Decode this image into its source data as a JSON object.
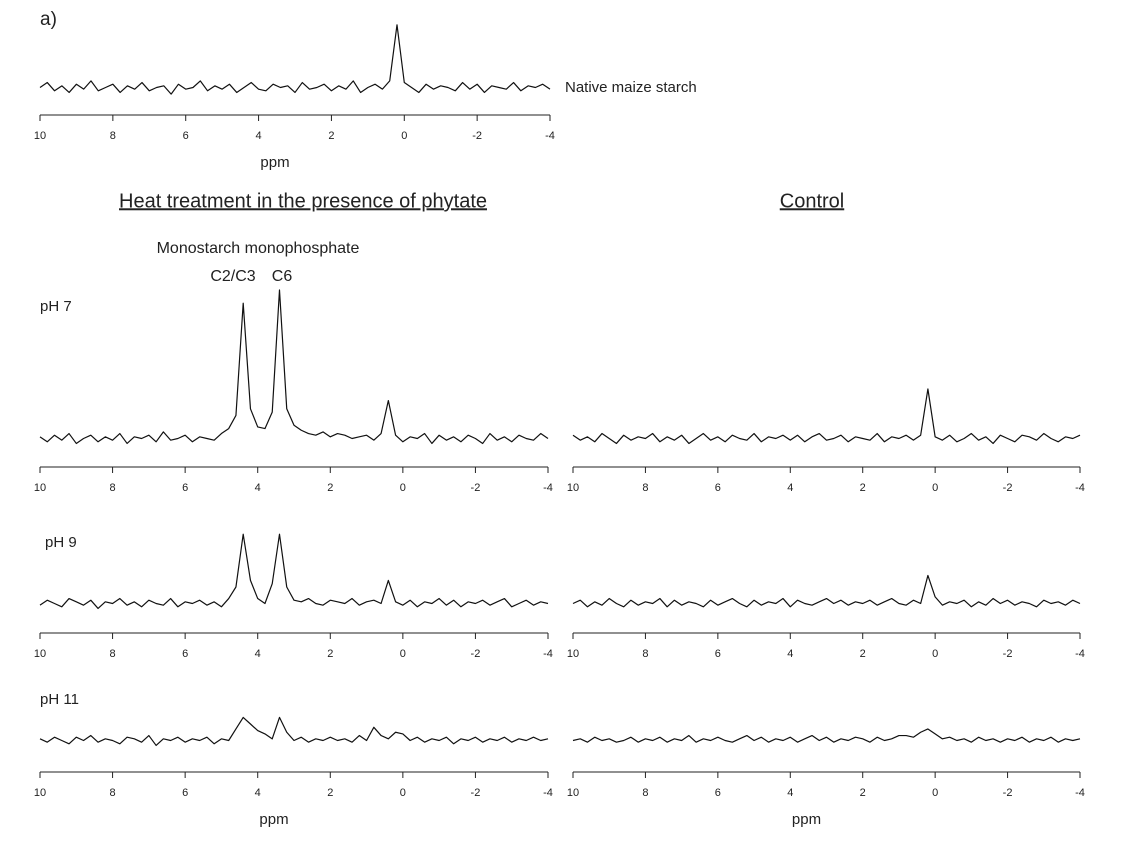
{
  "panel_label": "a)",
  "column_titles": [
    "Heat treatment in the presence of phytate",
    "Control"
  ],
  "annotations": [
    "Monostarch monophosphate",
    "C2/C3",
    "C6"
  ],
  "chart_data": [
    {
      "type": "line",
      "label": "Native maize starch",
      "xlabel": "ppm",
      "color": "#111111",
      "xlim": [
        10,
        -4
      ],
      "xticks": [
        10,
        8,
        6,
        4,
        2,
        0,
        -2,
        -4
      ],
      "x": [
        10,
        9.8,
        9.6,
        9.4,
        9.2,
        9,
        8.8,
        8.6,
        8.4,
        8.2,
        8,
        7.8,
        7.6,
        7.4,
        7.2,
        7,
        6.8,
        6.6,
        6.4,
        6.2,
        6,
        5.8,
        5.6,
        5.4,
        5.2,
        5,
        4.8,
        4.6,
        4.4,
        4.2,
        4,
        3.8,
        3.6,
        3.4,
        3.2,
        3,
        2.8,
        2.6,
        2.4,
        2.2,
        2,
        1.8,
        1.6,
        1.4,
        1.2,
        1,
        0.8,
        0.6,
        0.4,
        0.2,
        0,
        -0.2,
        -0.4,
        -0.6,
        -0.8,
        -1,
        -1.2,
        -1.4,
        -1.6,
        -1.8,
        -2,
        -2.2,
        -2.4,
        -2.6,
        -2.8,
        -3,
        -3.2,
        -3.4,
        -3.6,
        -3.8,
        -4
      ],
      "values": [
        10,
        13,
        8,
        11,
        7,
        12,
        9,
        14,
        8,
        10,
        12,
        7,
        11,
        9,
        13,
        8,
        10,
        11,
        6,
        12,
        9,
        10,
        14,
        8,
        11,
        9,
        12,
        7,
        10,
        13,
        9,
        8,
        12,
        10,
        11,
        7,
        13,
        9,
        10,
        12,
        8,
        11,
        9,
        14,
        7,
        10,
        12,
        9,
        14,
        48,
        13,
        10,
        7,
        12,
        9,
        11,
        10,
        8,
        13,
        9,
        12,
        7,
        11,
        10,
        9,
        13,
        8,
        11,
        10,
        12,
        9
      ],
      "ylim": [
        0,
        100
      ]
    },
    {
      "type": "line",
      "label": "pH 7",
      "color": "#111111",
      "xlim": [
        10,
        -4
      ],
      "xticks": [
        10,
        8,
        6,
        4,
        2,
        0,
        -2,
        -4
      ],
      "x": [
        10,
        9.8,
        9.6,
        9.4,
        9.2,
        9,
        8.8,
        8.6,
        8.4,
        8.2,
        8,
        7.8,
        7.6,
        7.4,
        7.2,
        7,
        6.8,
        6.6,
        6.4,
        6.2,
        6,
        5.8,
        5.6,
        5.4,
        5.2,
        5,
        4.8,
        4.6,
        4.4,
        4.2,
        4,
        3.8,
        3.6,
        3.4,
        3.2,
        3,
        2.8,
        2.6,
        2.4,
        2.2,
        2,
        1.8,
        1.6,
        1.4,
        1.2,
        1,
        0.8,
        0.6,
        0.4,
        0.2,
        0,
        -0.2,
        -0.4,
        -0.6,
        -0.8,
        -1,
        -1.2,
        -1.4,
        -1.6,
        -1.8,
        -2,
        -2.2,
        -2.4,
        -2.6,
        -2.8,
        -3,
        -3.2,
        -3.4,
        -3.6,
        -3.8,
        -4
      ],
      "values": [
        11,
        8,
        12,
        9,
        13,
        7,
        10,
        12,
        8,
        11,
        9,
        13,
        7,
        11,
        10,
        12,
        8,
        14,
        9,
        10,
        12,
        8,
        11,
        10,
        9,
        13,
        16,
        24,
        92,
        28,
        17,
        16,
        26,
        100,
        28,
        18,
        15,
        13,
        12,
        14,
        11,
        13,
        12,
        10,
        11,
        12,
        9,
        13,
        33,
        12,
        8,
        11,
        10,
        13,
        7,
        12,
        9,
        11,
        8,
        12,
        10,
        7,
        13,
        9,
        11,
        8,
        12,
        10,
        9,
        13,
        10
      ],
      "ylim": [
        0,
        100
      ]
    },
    {
      "type": "line",
      "color": "#111111",
      "xlim": [
        10,
        -4
      ],
      "xticks": [
        10,
        8,
        6,
        4,
        2,
        0,
        -2,
        -4
      ],
      "x": [
        10,
        9.8,
        9.6,
        9.4,
        9.2,
        9,
        8.8,
        8.6,
        8.4,
        8.2,
        8,
        7.8,
        7.6,
        7.4,
        7.2,
        7,
        6.8,
        6.6,
        6.4,
        6.2,
        6,
        5.8,
        5.6,
        5.4,
        5.2,
        5,
        4.8,
        4.6,
        4.4,
        4.2,
        4,
        3.8,
        3.6,
        3.4,
        3.2,
        3,
        2.8,
        2.6,
        2.4,
        2.2,
        2,
        1.8,
        1.6,
        1.4,
        1.2,
        1,
        0.8,
        0.6,
        0.4,
        0.2,
        0,
        -0.2,
        -0.4,
        -0.6,
        -0.8,
        -1,
        -1.2,
        -1.4,
        -1.6,
        -1.8,
        -2,
        -2.2,
        -2.4,
        -2.6,
        -2.8,
        -3,
        -3.2,
        -3.4,
        -3.6,
        -3.8,
        -4
      ],
      "values": [
        12,
        9,
        11,
        8,
        13,
        10,
        7,
        12,
        9,
        11,
        10,
        13,
        8,
        11,
        9,
        12,
        7,
        10,
        13,
        9,
        11,
        8,
        12,
        10,
        9,
        13,
        8,
        11,
        10,
        12,
        9,
        12,
        8,
        11,
        13,
        9,
        10,
        12,
        8,
        11,
        10,
        9,
        13,
        8,
        11,
        10,
        12,
        9,
        12,
        40,
        11,
        9,
        12,
        8,
        10,
        13,
        9,
        11,
        7,
        12,
        10,
        8,
        12,
        11,
        9,
        13,
        10,
        8,
        11,
        10,
        12
      ],
      "ylim": [
        0,
        100
      ]
    },
    {
      "type": "line",
      "label": "pH 9",
      "color": "#111111",
      "xlim": [
        10,
        -4
      ],
      "xticks": [
        10,
        8,
        6,
        4,
        2,
        0,
        -2,
        -4
      ],
      "x": [
        10,
        9.8,
        9.6,
        9.4,
        9.2,
        9,
        8.8,
        8.6,
        8.4,
        8.2,
        8,
        7.8,
        7.6,
        7.4,
        7.2,
        7,
        6.8,
        6.6,
        6.4,
        6.2,
        6,
        5.8,
        5.6,
        5.4,
        5.2,
        5,
        4.8,
        4.6,
        4.4,
        4.2,
        4,
        3.8,
        3.6,
        3.4,
        3.2,
        3,
        2.8,
        2.6,
        2.4,
        2.2,
        2,
        1.8,
        1.6,
        1.4,
        1.2,
        1,
        0.8,
        0.6,
        0.4,
        0.2,
        0,
        -0.2,
        -0.4,
        -0.6,
        -0.8,
        -1,
        -1.2,
        -1.4,
        -1.6,
        -1.8,
        -2,
        -2.2,
        -2.4,
        -2.6,
        -2.8,
        -3,
        -3.2,
        -3.4,
        -3.6,
        -3.8,
        -4
      ],
      "values": [
        9,
        12,
        10,
        8,
        13,
        11,
        9,
        12,
        7,
        11,
        10,
        13,
        9,
        11,
        8,
        12,
        10,
        9,
        13,
        8,
        11,
        10,
        12,
        9,
        11,
        8,
        13,
        20,
        52,
        24,
        13,
        10,
        22,
        52,
        20,
        12,
        11,
        13,
        10,
        9,
        12,
        11,
        10,
        13,
        9,
        11,
        12,
        10,
        24,
        11,
        9,
        12,
        8,
        11,
        10,
        13,
        9,
        12,
        8,
        11,
        10,
        12,
        9,
        11,
        13,
        8,
        10,
        12,
        9,
        11,
        10
      ],
      "ylim": [
        0,
        100
      ]
    },
    {
      "type": "line",
      "color": "#111111",
      "xlim": [
        10,
        -4
      ],
      "xticks": [
        10,
        8,
        6,
        4,
        2,
        0,
        -2,
        -4
      ],
      "x": [
        10,
        9.8,
        9.6,
        9.4,
        9.2,
        9,
        8.8,
        8.6,
        8.4,
        8.2,
        8,
        7.8,
        7.6,
        7.4,
        7.2,
        7,
        6.8,
        6.6,
        6.4,
        6.2,
        6,
        5.8,
        5.6,
        5.4,
        5.2,
        5,
        4.8,
        4.6,
        4.4,
        4.2,
        4,
        3.8,
        3.6,
        3.4,
        3.2,
        3,
        2.8,
        2.6,
        2.4,
        2.2,
        2,
        1.8,
        1.6,
        1.4,
        1.2,
        1,
        0.8,
        0.6,
        0.4,
        0.2,
        0,
        -0.2,
        -0.4,
        -0.6,
        -0.8,
        -1,
        -1.2,
        -1.4,
        -1.6,
        -1.8,
        -2,
        -2.2,
        -2.4,
        -2.6,
        -2.8,
        -3,
        -3.2,
        -3.4,
        -3.6,
        -3.8,
        -4
      ],
      "values": [
        10,
        12,
        8,
        11,
        9,
        13,
        10,
        8,
        12,
        9,
        11,
        10,
        13,
        8,
        12,
        9,
        11,
        10,
        8,
        12,
        9,
        11,
        13,
        10,
        8,
        12,
        9,
        11,
        10,
        13,
        8,
        12,
        10,
        9,
        11,
        13,
        10,
        12,
        9,
        11,
        10,
        12,
        9,
        11,
        13,
        10,
        9,
        12,
        10,
        27,
        14,
        9,
        11,
        10,
        12,
        8,
        11,
        9,
        13,
        10,
        12,
        9,
        11,
        10,
        8,
        12,
        10,
        11,
        9,
        12,
        10
      ],
      "ylim": [
        0,
        100
      ]
    },
    {
      "type": "line",
      "label": "pH 11",
      "xlabel": "ppm",
      "color": "#111111",
      "xlim": [
        10,
        -4
      ],
      "xticks": [
        10,
        8,
        6,
        4,
        2,
        0,
        -2,
        -4
      ],
      "x": [
        10,
        9.8,
        9.6,
        9.4,
        9.2,
        9,
        8.8,
        8.6,
        8.4,
        8.2,
        8,
        7.8,
        7.6,
        7.4,
        7.2,
        7,
        6.8,
        6.6,
        6.4,
        6.2,
        6,
        5.8,
        5.6,
        5.4,
        5.2,
        5,
        4.8,
        4.6,
        4.4,
        4.2,
        4,
        3.8,
        3.6,
        3.4,
        3.2,
        3,
        2.8,
        2.6,
        2.4,
        2.2,
        2,
        1.8,
        1.6,
        1.4,
        1.2,
        1,
        0.8,
        0.6,
        0.4,
        0.2,
        0,
        -0.2,
        -0.4,
        -0.6,
        -0.8,
        -1,
        -1.2,
        -1.4,
        -1.6,
        -1.8,
        -2,
        -2.2,
        -2.4,
        -2.6,
        -2.8,
        -3,
        -3.2,
        -3.4,
        -3.6,
        -3.8,
        -4
      ],
      "values": [
        11,
        9,
        12,
        10,
        8,
        12,
        10,
        13,
        9,
        11,
        10,
        8,
        12,
        11,
        9,
        13,
        7,
        11,
        10,
        12,
        9,
        11,
        10,
        12,
        8,
        11,
        10,
        17,
        24,
        20,
        16,
        14,
        11,
        24,
        15,
        10,
        12,
        9,
        11,
        10,
        12,
        10,
        11,
        9,
        13,
        10,
        18,
        13,
        11,
        15,
        14,
        10,
        12,
        9,
        11,
        10,
        12,
        8,
        11,
        10,
        12,
        9,
        11,
        10,
        12,
        9,
        11,
        10,
        12,
        10,
        11
      ],
      "ylim": [
        0,
        100
      ]
    },
    {
      "type": "line",
      "xlabel": "ppm",
      "color": "#111111",
      "xlim": [
        10,
        -4
      ],
      "xticks": [
        10,
        8,
        6,
        4,
        2,
        0,
        -2,
        -4
      ],
      "x": [
        10,
        9.8,
        9.6,
        9.4,
        9.2,
        9,
        8.8,
        8.6,
        8.4,
        8.2,
        8,
        7.8,
        7.6,
        7.4,
        7.2,
        7,
        6.8,
        6.6,
        6.4,
        6.2,
        6,
        5.8,
        5.6,
        5.4,
        5.2,
        5,
        4.8,
        4.6,
        4.4,
        4.2,
        4,
        3.8,
        3.6,
        3.4,
        3.2,
        3,
        2.8,
        2.6,
        2.4,
        2.2,
        2,
        1.8,
        1.6,
        1.4,
        1.2,
        1,
        0.8,
        0.6,
        0.4,
        0.2,
        0,
        -0.2,
        -0.4,
        -0.6,
        -0.8,
        -1,
        -1.2,
        -1.4,
        -1.6,
        -1.8,
        -2,
        -2.2,
        -2.4,
        -2.6,
        -2.8,
        -3,
        -3.2,
        -3.4,
        -3.6,
        -3.8,
        -4
      ],
      "values": [
        10,
        11,
        9,
        12,
        10,
        11,
        9,
        10,
        12,
        9,
        11,
        10,
        12,
        9,
        11,
        10,
        13,
        9,
        11,
        10,
        12,
        10,
        9,
        11,
        13,
        10,
        12,
        9,
        11,
        10,
        12,
        9,
        11,
        13,
        10,
        12,
        9,
        11,
        10,
        12,
        11,
        9,
        12,
        10,
        11,
        13,
        13,
        12,
        15,
        17,
        14,
        11,
        12,
        10,
        11,
        9,
        12,
        10,
        11,
        9,
        11,
        10,
        12,
        9,
        11,
        10,
        12,
        9,
        11,
        10,
        11
      ],
      "ylim": [
        0,
        100
      ]
    }
  ]
}
